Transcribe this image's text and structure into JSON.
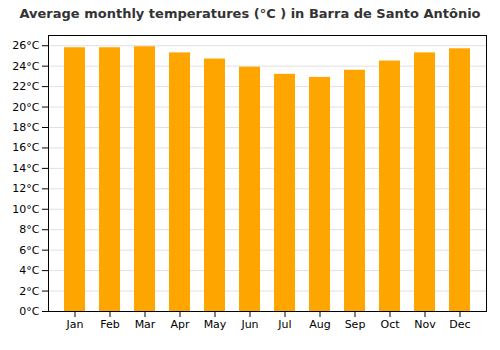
{
  "chart_data": {
    "type": "bar",
    "title": "Average monthly temperatures (°C ) in Barra de Santo Antônio",
    "categories": [
      "Jan",
      "Feb",
      "Mar",
      "Apr",
      "May",
      "Jun",
      "Jul",
      "Aug",
      "Sep",
      "Oct",
      "Nov",
      "Dec"
    ],
    "values": [
      25.8,
      25.8,
      25.9,
      25.3,
      24.7,
      23.9,
      23.2,
      22.9,
      23.6,
      24.5,
      25.3,
      25.7
    ],
    "color": "#FFA500",
    "ylim": [
      0,
      27
    ],
    "yticks": [
      {
        "value": 0,
        "label": "0°C"
      },
      {
        "value": 2,
        "label": "2°C"
      },
      {
        "value": 4,
        "label": "4°C"
      },
      {
        "value": 6,
        "label": "6°C"
      },
      {
        "value": 8,
        "label": "8°C"
      },
      {
        "value": 10,
        "label": "10°C"
      },
      {
        "value": 12,
        "label": "12°C"
      },
      {
        "value": 14,
        "label": "14°C"
      },
      {
        "value": 16,
        "label": "16°C"
      },
      {
        "value": 18,
        "label": "18°C"
      },
      {
        "value": 20,
        "label": "20°C"
      },
      {
        "value": 22,
        "label": "22°C"
      },
      {
        "value": 24,
        "label": "24°C"
      },
      {
        "value": 26,
        "label": "26°C"
      }
    ],
    "grid": true
  }
}
